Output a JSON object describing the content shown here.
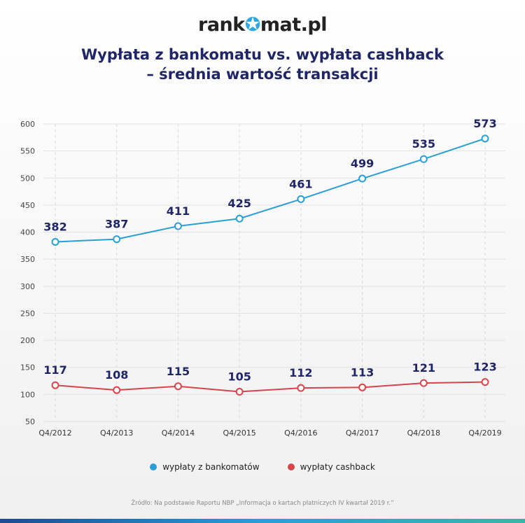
{
  "logo": {
    "before": "rank",
    "star": "✪",
    "after": "mat.pl"
  },
  "title_line1": "Wypłata z bankomatu vs. wypłata cashback",
  "title_line2": "– średnia wartość transakcji",
  "chart_data": {
    "type": "line",
    "categories": [
      "Q4/2012",
      "Q4/2013",
      "Q4/2014",
      "Q4/2015",
      "Q4/2016",
      "Q4/2017",
      "Q4/2018",
      "Q4/2019"
    ],
    "series": [
      {
        "name": "wypłaty z bankomatów",
        "color": "#2a9fd6",
        "values": [
          382,
          387,
          411,
          425,
          461,
          499,
          535,
          573
        ]
      },
      {
        "name": "wypłaty cashback",
        "color": "#d9434b",
        "values": [
          117,
          108,
          115,
          105,
          112,
          113,
          121,
          123
        ]
      }
    ],
    "yticks": [
      50,
      100,
      150,
      200,
      250,
      300,
      350,
      400,
      450,
      500,
      550,
      600
    ],
    "ylim": [
      50,
      600
    ],
    "grid": true,
    "legend": "bottom"
  },
  "source": "Źródło: Na podstawie Raportu NBP „Informacja o kartach płatniczych IV kwartał 2019 r.”"
}
